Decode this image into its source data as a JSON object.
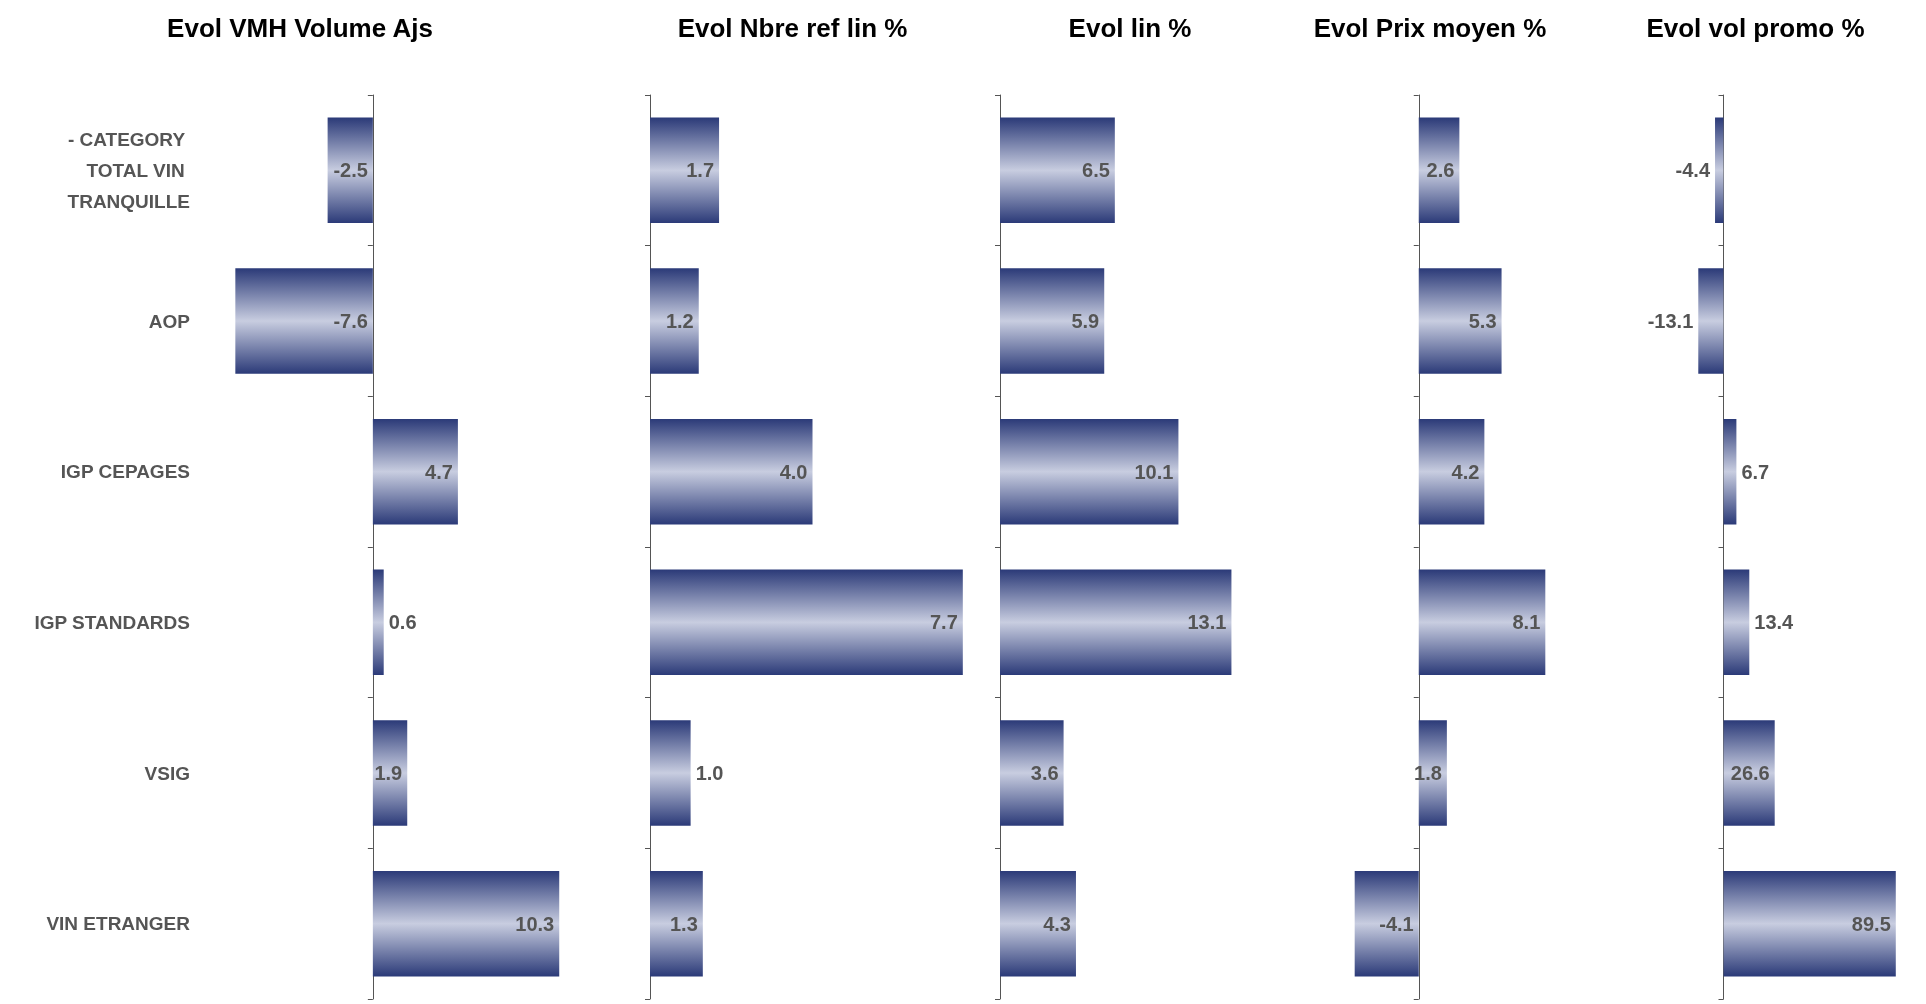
{
  "chart_data": [
    {
      "type": "bar",
      "orientation": "horizontal",
      "title": "Evol VMH Volume Ajs",
      "categories": [
        "- CATEGORY TOTAL VIN TRANQUILLE",
        "AOP",
        "IGP CEPAGES",
        "IGP STANDARDS",
        "VSIG",
        "VIN ETRANGER"
      ],
      "values": [
        -2.5,
        -7.6,
        4.7,
        0.6,
        1.9,
        10.3
      ],
      "value_labels": [
        "-2.5",
        "-7.6",
        "4.7",
        "0.6",
        "1.9",
        "10.3"
      ],
      "color": "#2b3a78",
      "tick_labels": "y"
    },
    {
      "type": "bar",
      "orientation": "horizontal",
      "title": "Evol Nbre ref lin %",
      "categories": [
        "- CATEGORY TOTAL VIN TRANQUILLE",
        "AOP",
        "IGP CEPAGES",
        "IGP STANDARDS",
        "VSIG",
        "VIN ETRANGER"
      ],
      "values": [
        1.7,
        1.2,
        4.0,
        7.7,
        1.0,
        1.3
      ],
      "value_labels": [
        "1.7",
        "1.2",
        "4.0",
        "7.7",
        "1.0",
        "1.3"
      ],
      "color": "#2b3a78",
      "tick_labels": false
    },
    {
      "type": "bar",
      "orientation": "horizontal",
      "title": "Evol lin %",
      "categories": [
        "- CATEGORY TOTAL VIN TRANQUILLE",
        "AOP",
        "IGP CEPAGES",
        "IGP STANDARDS",
        "VSIG",
        "VIN ETRANGER"
      ],
      "values": [
        6.5,
        5.9,
        10.1,
        13.1,
        3.6,
        4.3
      ],
      "value_labels": [
        "6.5",
        "5.9",
        "10.1",
        "13.1",
        "3.6",
        "4.3"
      ],
      "color": "#2b3a78",
      "tick_labels": false
    },
    {
      "type": "bar",
      "orientation": "horizontal",
      "title": "Evol Prix moyen %",
      "categories": [
        "- CATEGORY TOTAL VIN TRANQUILLE",
        "AOP",
        "IGP CEPAGES",
        "IGP STANDARDS",
        "VSIG",
        "VIN ETRANGER"
      ],
      "values": [
        2.6,
        5.3,
        4.2,
        8.1,
        1.8,
        -4.1
      ],
      "value_labels": [
        "2.6",
        "5.3",
        "4.2",
        "8.1",
        "1.8",
        "-4.1"
      ],
      "color": "#2b3a78",
      "tick_labels": false
    },
    {
      "type": "bar",
      "orientation": "horizontal",
      "title": "Evol vol promo %",
      "categories": [
        "- CATEGORY TOTAL VIN TRANQUILLE",
        "AOP",
        "IGP CEPAGES",
        "IGP STANDARDS",
        "VSIG",
        "VIN ETRANGER"
      ],
      "values": [
        -4.4,
        -13.1,
        6.7,
        13.4,
        26.6,
        89.5
      ],
      "value_labels": [
        "-4.4",
        "-13.1",
        "6.7",
        "13.4",
        "26.6",
        "89.5"
      ],
      "color": "#2b3a78",
      "tick_labels": false
    }
  ]
}
